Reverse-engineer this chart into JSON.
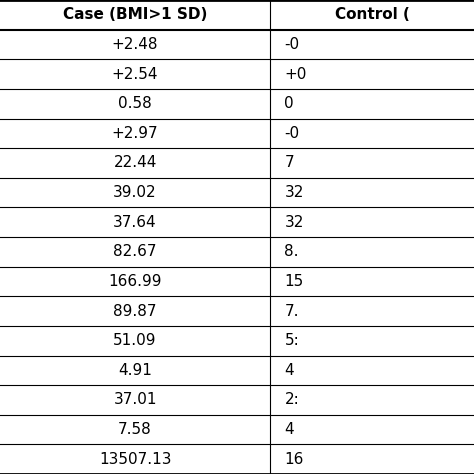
{
  "col1_header": "Case (BMI>1 SD)",
  "col2_header": "Control (",
  "col1_values": [
    "+2.48",
    "+2.54",
    "0.58",
    "+2.97",
    "22.44",
    "39.02",
    "37.64",
    "82.67",
    "166.99",
    "89.87",
    "51.09",
    "4.91",
    "37.01",
    "7.58",
    "13507.13"
  ],
  "col2_values": [
    "-0",
    "+0",
    "0",
    "-0",
    "7",
    "32",
    "32",
    "8.",
    "15",
    "7.",
    "5:",
    "4",
    "2:",
    "4",
    "16"
  ],
  "background_color": "#ffffff",
  "line_color": "#000000",
  "text_color": "#000000",
  "header_fontsize": 11,
  "cell_fontsize": 11,
  "figsize": [
    4.74,
    4.74
  ],
  "dpi": 100
}
